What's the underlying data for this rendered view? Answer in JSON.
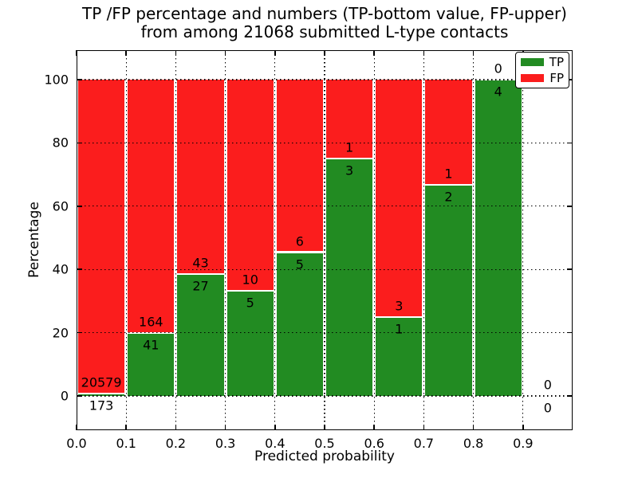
{
  "chart_data": {
    "type": "bar",
    "stacked": true,
    "normalized_to_percent": true,
    "title_lines": [
      "TP /FP percentage and numbers (TP-bottom value, FP-upper)",
      "from among 21068 submitted L-type contacts"
    ],
    "xlabel": "Predicted probability",
    "ylabel": "Percentage",
    "bin_edges": [
      0.0,
      0.1,
      0.2,
      0.3,
      0.4,
      0.5,
      0.6,
      0.7,
      0.8,
      0.9,
      1.0
    ],
    "series": [
      {
        "name": "TP",
        "color": "#228b22",
        "values": [
          173,
          41,
          27,
          5,
          5,
          3,
          1,
          2,
          4,
          0
        ]
      },
      {
        "name": "FP",
        "color": "#fb1d1d",
        "values": [
          20579,
          164,
          43,
          10,
          6,
          1,
          3,
          1,
          0,
          0
        ]
      }
    ],
    "total_submitted": 21068,
    "x_ticks": [
      "0.0",
      "0.1",
      "0.2",
      "0.3",
      "0.4",
      "0.5",
      "0.6",
      "0.7",
      "0.8",
      "0.9"
    ],
    "y_ticks": [
      "0",
      "20",
      "40",
      "60",
      "80",
      "100"
    ],
    "xlim": [
      0.0,
      1.0
    ],
    "ylim": [
      -10.8,
      109.3
    ],
    "grid": "dotted",
    "legend_position": "upper right",
    "edge_color": "#ffffff",
    "text_color": "#000000"
  }
}
